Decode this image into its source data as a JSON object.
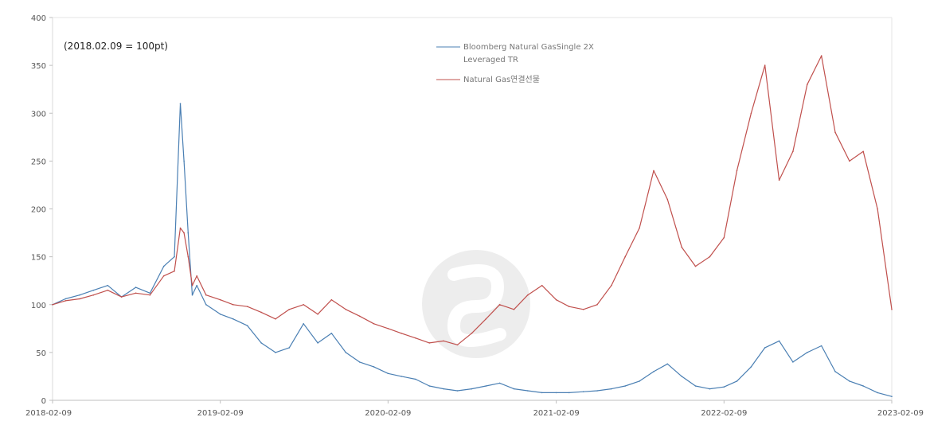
{
  "chart_data": {
    "type": "line",
    "annotation": "(2018.02.09 = 100pt)",
    "xlabel": "",
    "ylabel": "",
    "x_ticks": [
      "2018-02-09",
      "2019-02-09",
      "2020-02-09",
      "2021-02-09",
      "2022-02-09",
      "2023-02-09"
    ],
    "y_ticks": [
      0,
      50,
      100,
      150,
      200,
      250,
      300,
      350,
      400
    ],
    "ylim": [
      0,
      400
    ],
    "xlim": [
      "2018-02-09",
      "2023-02-09"
    ],
    "grid": false,
    "legend_position": "top-center",
    "series": [
      {
        "name": "Bloomberg Natural GasSingle 2X Leveraged TR",
        "color": "#4a7fb3",
        "x": [
          "2018-02-09",
          "2018-03-09",
          "2018-04-09",
          "2018-05-09",
          "2018-06-09",
          "2018-07-09",
          "2018-08-09",
          "2018-09-09",
          "2018-10-09",
          "2018-11-01",
          "2018-11-14",
          "2018-11-22",
          "2018-12-01",
          "2018-12-10",
          "2018-12-20",
          "2019-01-09",
          "2019-02-09",
          "2019-03-09",
          "2019-04-09",
          "2019-05-09",
          "2019-06-09",
          "2019-07-09",
          "2019-08-09",
          "2019-09-09",
          "2019-10-09",
          "2019-11-09",
          "2019-12-09",
          "2020-01-09",
          "2020-02-09",
          "2020-03-09",
          "2020-04-09",
          "2020-05-09",
          "2020-06-09",
          "2020-07-09",
          "2020-08-09",
          "2020-09-09",
          "2020-10-09",
          "2020-11-09",
          "2020-12-09",
          "2021-01-09",
          "2021-02-09",
          "2021-03-09",
          "2021-04-09",
          "2021-05-09",
          "2021-06-09",
          "2021-07-09",
          "2021-08-09",
          "2021-09-09",
          "2021-10-09",
          "2021-11-09",
          "2021-12-09",
          "2022-01-09",
          "2022-02-09",
          "2022-03-09",
          "2022-04-09",
          "2022-05-09",
          "2022-06-09",
          "2022-07-09",
          "2022-08-09",
          "2022-09-09",
          "2022-10-09",
          "2022-11-09",
          "2022-12-09",
          "2023-01-09",
          "2023-02-09"
        ],
        "values": [
          100,
          106,
          110,
          115,
          120,
          108,
          118,
          112,
          140,
          150,
          310,
          250,
          175,
          110,
          120,
          100,
          90,
          85,
          78,
          60,
          50,
          55,
          80,
          60,
          70,
          50,
          40,
          35,
          28,
          25,
          22,
          15,
          12,
          10,
          12,
          15,
          18,
          12,
          10,
          8,
          8,
          8,
          9,
          10,
          12,
          15,
          20,
          30,
          38,
          25,
          15,
          12,
          14,
          20,
          35,
          55,
          62,
          40,
          50,
          57,
          30,
          20,
          15,
          8,
          4
        ]
      },
      {
        "name": "Natural Gas연결선물",
        "color": "#c0504d",
        "x": [
          "2018-02-09",
          "2018-03-09",
          "2018-04-09",
          "2018-05-09",
          "2018-06-09",
          "2018-07-09",
          "2018-08-09",
          "2018-09-09",
          "2018-10-09",
          "2018-11-01",
          "2018-11-14",
          "2018-11-22",
          "2018-12-01",
          "2018-12-10",
          "2018-12-20",
          "2019-01-09",
          "2019-02-09",
          "2019-03-09",
          "2019-04-09",
          "2019-05-09",
          "2019-06-09",
          "2019-07-09",
          "2019-08-09",
          "2019-09-09",
          "2019-10-09",
          "2019-11-09",
          "2019-12-09",
          "2020-01-09",
          "2020-02-09",
          "2020-03-09",
          "2020-04-09",
          "2020-05-09",
          "2020-06-09",
          "2020-07-09",
          "2020-08-09",
          "2020-09-09",
          "2020-10-09",
          "2020-11-09",
          "2020-12-09",
          "2021-01-09",
          "2021-02-09",
          "2021-03-09",
          "2021-04-09",
          "2021-05-09",
          "2021-06-09",
          "2021-07-09",
          "2021-08-09",
          "2021-09-09",
          "2021-10-09",
          "2021-11-09",
          "2021-12-09",
          "2022-01-09",
          "2022-02-09",
          "2022-03-09",
          "2022-04-09",
          "2022-05-09",
          "2022-06-09",
          "2022-07-09",
          "2022-08-09",
          "2022-09-09",
          "2022-10-09",
          "2022-11-09",
          "2022-12-09",
          "2023-01-09",
          "2023-02-09"
        ],
        "values": [
          100,
          104,
          106,
          110,
          115,
          108,
          112,
          110,
          130,
          135,
          180,
          175,
          150,
          120,
          130,
          110,
          105,
          100,
          98,
          92,
          85,
          95,
          100,
          90,
          105,
          95,
          88,
          80,
          75,
          70,
          65,
          60,
          62,
          58,
          70,
          85,
          100,
          95,
          110,
          120,
          105,
          98,
          95,
          100,
          120,
          150,
          180,
          240,
          210,
          160,
          140,
          150,
          170,
          240,
          300,
          350,
          230,
          260,
          330,
          360,
          280,
          250,
          260,
          200,
          95
        ]
      }
    ]
  }
}
